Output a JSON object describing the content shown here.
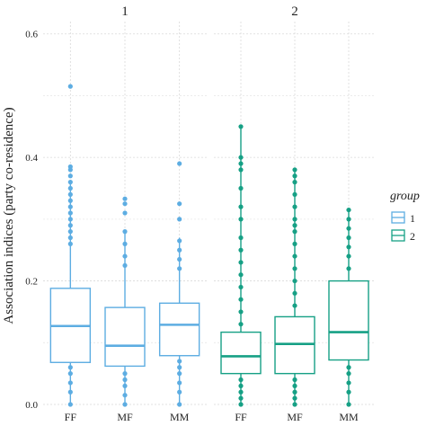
{
  "chart_data": {
    "type": "boxplot",
    "ylabel": "Association indices (party co-residence)",
    "ylim": [
      0.0,
      0.62
    ],
    "yticks": [
      "0.0",
      "0.2",
      "0.4",
      "0.6"
    ],
    "grid": true,
    "legend_position": "right",
    "legend": {
      "title": "group",
      "entries": [
        {
          "label": "1",
          "color": "#5DADE2"
        },
        {
          "label": "2",
          "color": "#16A085"
        }
      ]
    },
    "facets": [
      {
        "label": "1",
        "color": "#5DADE2",
        "boxes": [
          {
            "category": "FF",
            "whisker_low": 0.0,
            "q1": 0.068,
            "median": 0.127,
            "q3": 0.188,
            "whisker_high": 0.36,
            "outliers": [
              0.0,
              0.02,
              0.035,
              0.05,
              0.06,
              0.26,
              0.27,
              0.28,
              0.29,
              0.3,
              0.31,
              0.32,
              0.33,
              0.34,
              0.35,
              0.36,
              0.37,
              0.38,
              0.385,
              0.515
            ]
          },
          {
            "category": "MF",
            "whisker_low": 0.0,
            "q1": 0.062,
            "median": 0.095,
            "q3": 0.157,
            "whisker_high": 0.28,
            "outliers": [
              0.0,
              0.015,
              0.03,
              0.04,
              0.05,
              0.225,
              0.24,
              0.26,
              0.28,
              0.31,
              0.325,
              0.333
            ]
          },
          {
            "category": "MM",
            "whisker_low": 0.0,
            "q1": 0.079,
            "median": 0.129,
            "q3": 0.164,
            "whisker_high": 0.27,
            "outliers": [
              0.0,
              0.02,
              0.035,
              0.05,
              0.06,
              0.07,
              0.22,
              0.235,
              0.25,
              0.265,
              0.3,
              0.325,
              0.39
            ]
          }
        ]
      },
      {
        "label": "2",
        "color": "#16A085",
        "boxes": [
          {
            "category": "FF",
            "whisker_low": 0.0,
            "q1": 0.05,
            "median": 0.078,
            "q3": 0.117,
            "whisker_high": 0.45,
            "outliers": [
              0.0,
              0.01,
              0.02,
              0.03,
              0.04,
              0.13,
              0.15,
              0.17,
              0.19,
              0.21,
              0.23,
              0.25,
              0.27,
              0.3,
              0.32,
              0.35,
              0.38,
              0.39,
              0.4,
              0.45
            ]
          },
          {
            "category": "MF",
            "whisker_low": 0.0,
            "q1": 0.05,
            "median": 0.098,
            "q3": 0.142,
            "whisker_high": 0.38,
            "outliers": [
              0.0,
              0.01,
              0.02,
              0.03,
              0.04,
              0.16,
              0.18,
              0.2,
              0.22,
              0.24,
              0.26,
              0.28,
              0.29,
              0.3,
              0.32,
              0.34,
              0.36,
              0.37,
              0.38
            ]
          },
          {
            "category": "MM",
            "whisker_low": 0.0,
            "q1": 0.072,
            "median": 0.117,
            "q3": 0.2,
            "whisker_high": 0.315,
            "outliers": [
              0.0,
              0.02,
              0.035,
              0.05,
              0.06,
              0.22,
              0.24,
              0.255,
              0.27,
              0.285,
              0.3,
              0.315
            ]
          }
        ]
      }
    ]
  }
}
